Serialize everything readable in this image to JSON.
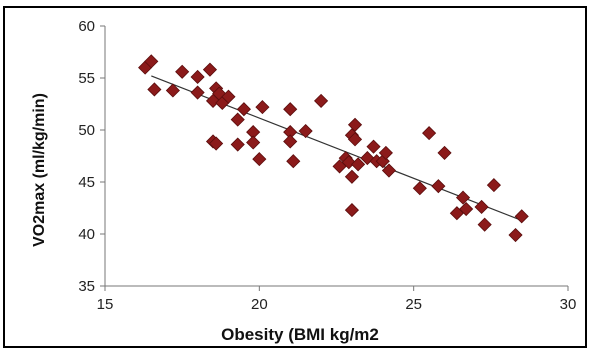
{
  "chart_data": {
    "type": "scatter",
    "xlabel": "Obesity (BMI kg/m2",
    "ylabel": "VO2max (ml/kg/min)",
    "xlim": [
      15,
      30
    ],
    "ylim": [
      35,
      60
    ],
    "xticks": [
      "15",
      "20",
      "25",
      "30"
    ],
    "yticks": [
      "35",
      "40",
      "45",
      "50",
      "55",
      "60"
    ],
    "grid": false,
    "legend": "none",
    "marker_color": "#8b1a1a",
    "trendline": {
      "from": [
        16.5,
        55.2
      ],
      "to": [
        28.5,
        41.3
      ]
    },
    "points": [
      [
        16.3,
        56.0
      ],
      [
        16.5,
        56.6
      ],
      [
        16.6,
        53.9
      ],
      [
        17.2,
        53.8
      ],
      [
        17.5,
        55.6
      ],
      [
        18.0,
        55.1
      ],
      [
        18.0,
        53.6
      ],
      [
        18.4,
        55.8
      ],
      [
        18.5,
        52.8
      ],
      [
        18.6,
        54.0
      ],
      [
        18.7,
        53.5
      ],
      [
        18.8,
        52.6
      ],
      [
        19.0,
        53.2
      ],
      [
        18.5,
        48.9
      ],
      [
        18.6,
        48.7
      ],
      [
        19.3,
        51.0
      ],
      [
        19.3,
        48.6
      ],
      [
        19.5,
        52.0
      ],
      [
        19.8,
        49.8
      ],
      [
        19.8,
        48.8
      ],
      [
        20.1,
        52.2
      ],
      [
        20.0,
        47.2
      ],
      [
        21.0,
        52.0
      ],
      [
        21.0,
        49.8
      ],
      [
        21.0,
        48.9
      ],
      [
        21.1,
        47.0
      ],
      [
        21.5,
        49.9
      ],
      [
        22.0,
        52.8
      ],
      [
        22.6,
        46.5
      ],
      [
        22.8,
        47.3
      ],
      [
        22.9,
        46.9
      ],
      [
        23.0,
        49.5
      ],
      [
        23.0,
        45.5
      ],
      [
        23.0,
        42.3
      ],
      [
        23.1,
        50.5
      ],
      [
        23.1,
        49.1
      ],
      [
        23.2,
        46.7
      ],
      [
        23.5,
        47.3
      ],
      [
        23.7,
        48.4
      ],
      [
        23.8,
        47.0
      ],
      [
        24.0,
        47.0
      ],
      [
        24.1,
        47.8
      ],
      [
        24.2,
        46.1
      ],
      [
        25.2,
        44.4
      ],
      [
        25.5,
        49.7
      ],
      [
        25.8,
        44.6
      ],
      [
        26.0,
        47.8
      ],
      [
        26.4,
        42.0
      ],
      [
        26.6,
        43.5
      ],
      [
        26.7,
        42.4
      ],
      [
        27.2,
        42.6
      ],
      [
        27.3,
        40.9
      ],
      [
        27.6,
        44.7
      ],
      [
        28.3,
        39.9
      ],
      [
        28.5,
        41.7
      ]
    ]
  }
}
